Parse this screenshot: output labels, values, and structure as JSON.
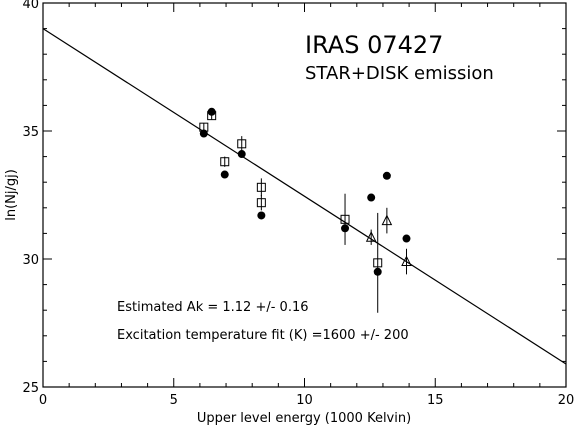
{
  "chart_data": {
    "type": "scatter",
    "title": "IRAS 07427",
    "subtitle": "STAR+DISK emission",
    "xlabel": "Upper level energy (1000 Kelvin)",
    "ylabel": "ln(Nj/gj)",
    "xlim": [
      0,
      20
    ],
    "ylim": [
      25,
      40
    ],
    "x_major_ticks": [
      0,
      5,
      10,
      15,
      20
    ],
    "x_tick_labels": [
      "0",
      "5",
      "10",
      "15",
      "20"
    ],
    "y_major_ticks": [
      25,
      30,
      35,
      40
    ],
    "y_tick_labels": [
      "25",
      "30",
      "35",
      "40"
    ],
    "grid": false,
    "legend": "none",
    "annotations": [
      "Estimated Ak = 1.12 +/- 0.16",
      "Excitation temperature fit (K) =1600 +/- 200"
    ],
    "fit_line": {
      "x": [
        0,
        20
      ],
      "y": [
        39.0,
        25.9
      ]
    },
    "series": [
      {
        "marker": "filled-circle",
        "points": [
          {
            "x": 6.15,
            "y": 34.9
          },
          {
            "x": 6.45,
            "y": 35.75
          },
          {
            "x": 6.95,
            "y": 33.3
          },
          {
            "x": 7.6,
            "y": 34.1
          },
          {
            "x": 8.35,
            "y": 31.7
          },
          {
            "x": 11.55,
            "y": 31.2
          },
          {
            "x": 12.55,
            "y": 32.4
          },
          {
            "x": 12.8,
            "y": 29.5
          },
          {
            "x": 13.15,
            "y": 33.25
          },
          {
            "x": 13.9,
            "y": 30.8
          }
        ]
      },
      {
        "marker": "open-square",
        "points": [
          {
            "x": 6.15,
            "y": 35.15,
            "err": 0.15
          },
          {
            "x": 6.45,
            "y": 35.6,
            "err": 0.15
          },
          {
            "x": 6.95,
            "y": 33.8,
            "err": 0.2
          },
          {
            "x": 7.6,
            "y": 34.5,
            "err": 0.3
          },
          {
            "x": 8.35,
            "y": 32.8,
            "err": 0.35
          },
          {
            "x": 8.35,
            "y": 32.2,
            "err": 0.3
          },
          {
            "x": 11.55,
            "y": 31.55,
            "err": 1.0
          },
          {
            "x": 12.8,
            "y": 29.85,
            "err": 1.95
          }
        ]
      },
      {
        "marker": "open-triangle",
        "points": [
          {
            "x": 12.55,
            "y": 30.85,
            "err": 0.3
          },
          {
            "x": 13.15,
            "y": 31.5,
            "err": 0.5
          },
          {
            "x": 13.9,
            "y": 29.9,
            "err": 0.5
          }
        ]
      }
    ]
  }
}
